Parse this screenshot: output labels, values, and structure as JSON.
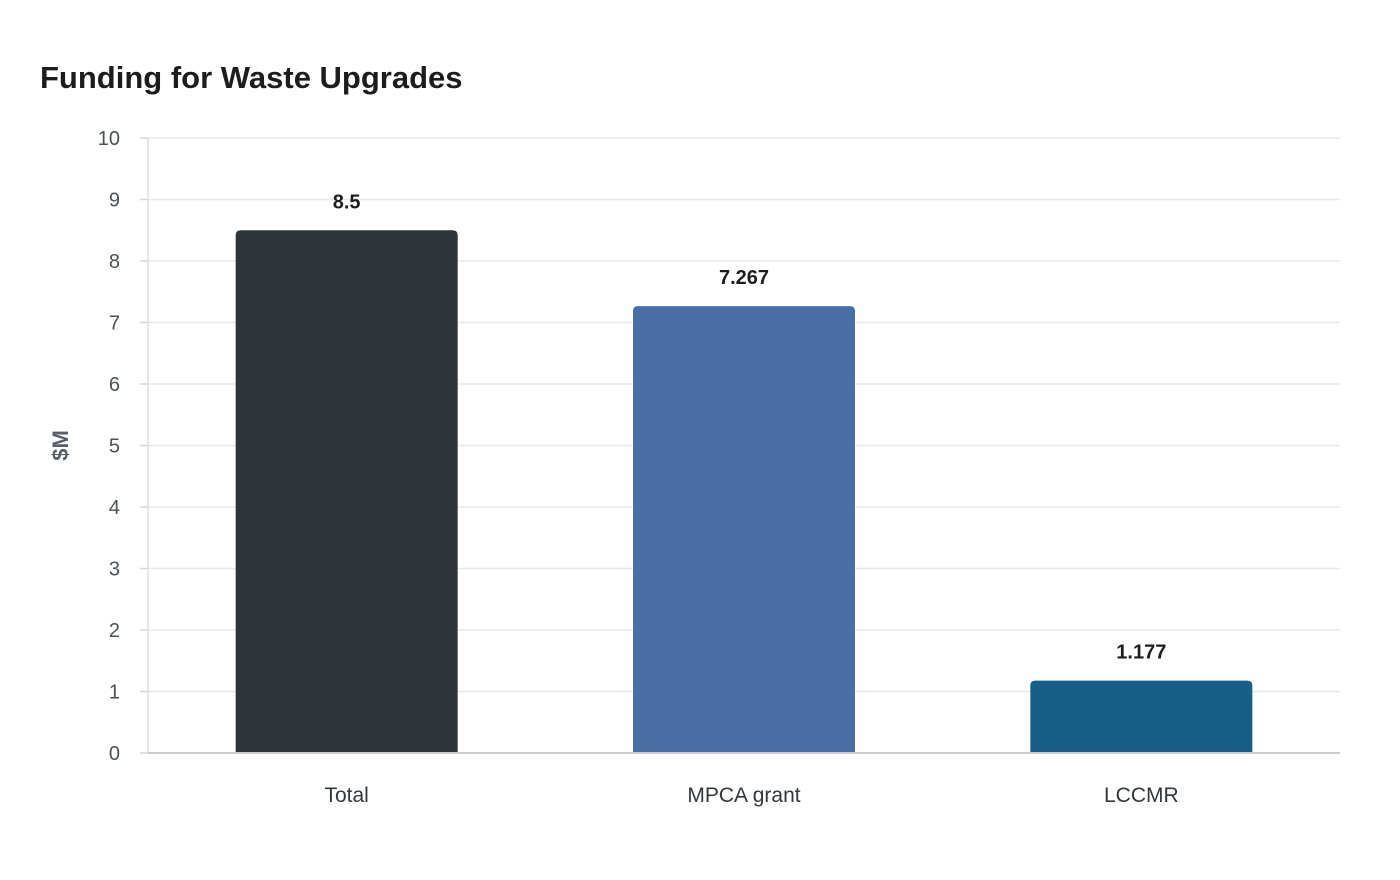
{
  "chart_data": {
    "type": "bar",
    "title": "Funding for Waste Upgrades",
    "xlabel": "",
    "ylabel": "$M",
    "categories": [
      "Total",
      "MPCA grant",
      "LCCMR"
    ],
    "values": [
      8.5,
      7.267,
      1.177
    ],
    "data_labels": [
      "8.5",
      "7.267",
      "1.177"
    ],
    "colors": [
      "#2e3538",
      "#4a6fa5",
      "#166088"
    ],
    "ylim": [
      0,
      10
    ],
    "yticks": [
      0,
      1,
      2,
      3,
      4,
      5,
      6,
      7,
      8,
      9,
      10
    ],
    "grid": true,
    "legend": "none"
  }
}
